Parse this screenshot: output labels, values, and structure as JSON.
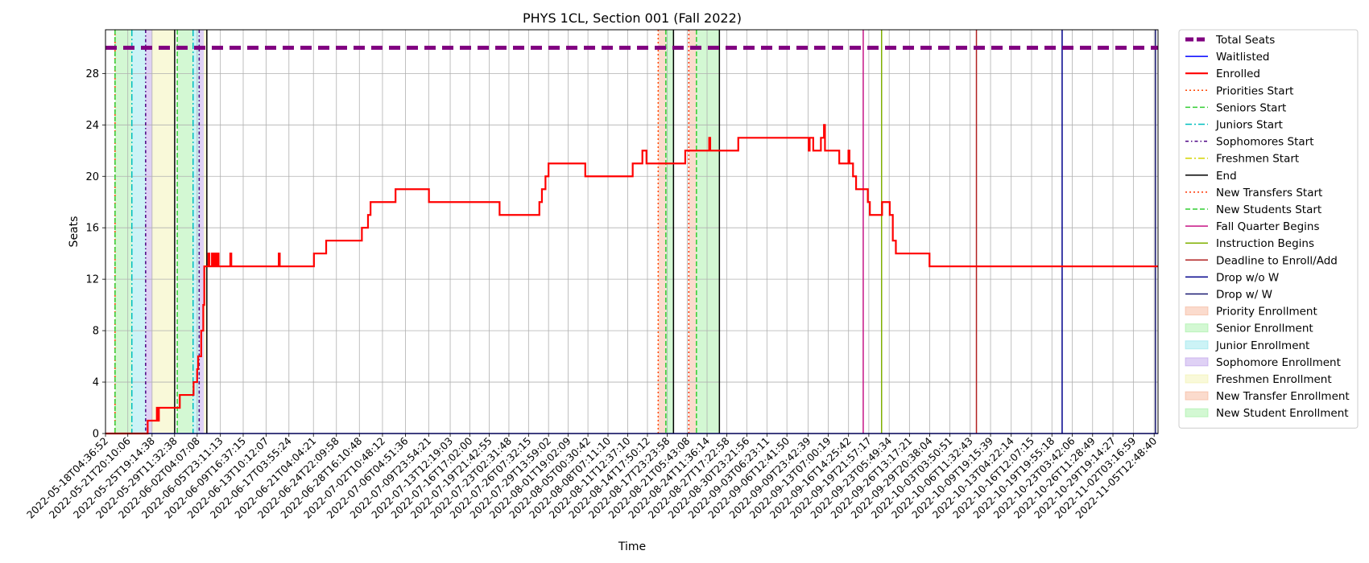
{
  "chart_data": {
    "type": "line",
    "title": "PHYS 1CL, Section 001 (Fall 2022)",
    "xlabel": "Time",
    "ylabel": "Seats",
    "x_start": "2022-05-18T04:36:52",
    "x_end": "2022-11-06T04:00:00",
    "ylim": [
      0,
      31.4
    ],
    "yticks": [
      0,
      4,
      8,
      12,
      16,
      20,
      24,
      28
    ],
    "grid": true,
    "legend_position": "outside-right",
    "xtick_labels": [
      "2022-05-18T04:36:52",
      "2022-05-21T20:10:06",
      "2022-05-25T19:14:38",
      "2022-05-29T11:32:38",
      "2022-06-02T04:07:08",
      "2022-06-05T23:11:13",
      "2022-06-09T16:37:15",
      "2022-06-13T10:12:07",
      "2022-06-17T03:55:24",
      "2022-06-21T04:04:21",
      "2022-06-24T22:09:58",
      "2022-06-28T16:10:48",
      "2022-07-02T10:48:12",
      "2022-07-06T04:51:36",
      "2022-07-09T23:54:21",
      "2022-07-13T12:19:03",
      "2022-07-16T17:02:00",
      "2022-07-19T21:42:55",
      "2022-07-23T02:31:48",
      "2022-07-26T07:32:15",
      "2022-07-29T13:59:02",
      "2022-08-01T19:02:09",
      "2022-08-05T00:30:42",
      "2022-08-08T07:11:10",
      "2022-08-11T12:37:10",
      "2022-08-14T17:50:12",
      "2022-08-17T23:23:58",
      "2022-08-21T05:43:08",
      "2022-08-24T11:36:14",
      "2022-08-27T17:22:58",
      "2022-08-30T23:21:56",
      "2022-09-03T06:23:11",
      "2022-09-06T12:41:50",
      "2022-09-09T23:42:39",
      "2022-09-13T07:00:19",
      "2022-09-16T14:25:42",
      "2022-09-19T21:57:17",
      "2022-09-23T05:49:34",
      "2022-09-26T13:17:21",
      "2022-09-29T20:38:04",
      "2022-10-03T03:50:51",
      "2022-10-06T11:32:43",
      "2022-10-09T19:15:39",
      "2022-10-13T04:22:14",
      "2022-10-16T12:07:15",
      "2022-10-19T19:55:18",
      "2022-10-23T03:42:06",
      "2022-10-26T11:28:49",
      "2022-10-29T19:14:27",
      "2022-11-02T03:16:59",
      "2022-11-05T12:48:40"
    ],
    "series": [
      {
        "name": "Total Seats",
        "color": "#800080",
        "style": "dashed-thick",
        "points": [
          [
            "2022-05-18T04:36:52",
            30
          ],
          [
            "2022-11-06T04:00:00",
            30
          ]
        ]
      },
      {
        "name": "Waitlisted",
        "color": "#0000ff",
        "style": "solid",
        "points": [
          [
            "2022-05-18T04:36:52",
            0
          ],
          [
            "2022-11-06T04:00:00",
            0
          ]
        ]
      },
      {
        "name": "Enrolled",
        "color": "#ff0000",
        "style": "step",
        "points": [
          [
            "2022-05-18T04:36:52",
            0
          ],
          [
            "2022-05-25T00:00:00",
            0
          ],
          [
            "2022-05-25T02:00:00",
            1
          ],
          [
            "2022-05-26T12:00:00",
            1
          ],
          [
            "2022-05-26T14:00:00",
            2
          ],
          [
            "2022-05-26T18:00:00",
            1
          ],
          [
            "2022-05-26T22:00:00",
            2
          ],
          [
            "2022-05-30T06:00:00",
            2
          ],
          [
            "2022-05-30T08:00:00",
            3
          ],
          [
            "2022-06-01T12:00:00",
            3
          ],
          [
            "2022-06-01T14:00:00",
            4
          ],
          [
            "2022-06-02T04:00:00",
            5
          ],
          [
            "2022-06-02T08:00:00",
            6
          ],
          [
            "2022-06-02T20:00:00",
            8
          ],
          [
            "2022-06-03T04:00:00",
            10
          ],
          [
            "2022-06-03T08:00:00",
            13
          ],
          [
            "2022-06-03T22:00:00",
            13
          ],
          [
            "2022-06-04T00:00:00",
            14
          ],
          [
            "2022-06-04T04:00:00",
            13
          ],
          [
            "2022-06-04T12:00:00",
            13
          ],
          [
            "2022-06-04T14:00:00",
            14
          ],
          [
            "2022-06-04T18:00:00",
            13
          ],
          [
            "2022-06-05T00:00:00",
            14
          ],
          [
            "2022-06-05T06:00:00",
            13
          ],
          [
            "2022-06-05T12:00:00",
            14
          ],
          [
            "2022-06-05T16:00:00",
            13
          ],
          [
            "2022-06-07T12:00:00",
            13
          ],
          [
            "2022-06-07T14:00:00",
            14
          ],
          [
            "2022-06-07T18:00:00",
            13
          ],
          [
            "2022-06-15T10:00:00",
            13
          ],
          [
            "2022-06-15T12:00:00",
            14
          ],
          [
            "2022-06-15T16:00:00",
            13
          ],
          [
            "2022-06-21T04:00:00",
            13
          ],
          [
            "2022-06-21T06:00:00",
            14
          ],
          [
            "2022-06-23T04:00:00",
            14
          ],
          [
            "2022-06-23T06:00:00",
            15
          ],
          [
            "2022-06-29T00:00:00",
            15
          ],
          [
            "2022-06-29T02:00:00",
            16
          ],
          [
            "2022-06-30T00:00:00",
            16
          ],
          [
            "2022-06-30T02:00:00",
            17
          ],
          [
            "2022-06-30T10:00:00",
            17
          ],
          [
            "2022-06-30T12:00:00",
            18
          ],
          [
            "2022-07-04T12:00:00",
            18
          ],
          [
            "2022-07-04T14:00:00",
            19
          ],
          [
            "2022-07-09T23:00:00",
            19
          ],
          [
            "2022-07-10T01:00:00",
            18
          ],
          [
            "2022-07-21T12:00:00",
            18
          ],
          [
            "2022-07-21T14:00:00",
            17
          ],
          [
            "2022-07-28T00:00:00",
            17
          ],
          [
            "2022-07-28T02:00:00",
            18
          ],
          [
            "2022-07-28T10:00:00",
            18
          ],
          [
            "2022-07-28T12:00:00",
            19
          ],
          [
            "2022-07-29T00:00:00",
            19
          ],
          [
            "2022-07-29T02:00:00",
            20
          ],
          [
            "2022-07-29T12:00:00",
            20
          ],
          [
            "2022-07-29T14:00:00",
            21
          ],
          [
            "2022-08-04T12:00:00",
            21
          ],
          [
            "2022-08-04T14:00:00",
            20
          ],
          [
            "2022-08-12T06:00:00",
            20
          ],
          [
            "2022-08-12T08:00:00",
            21
          ],
          [
            "2022-08-13T20:00:00",
            21
          ],
          [
            "2022-08-13T22:00:00",
            22
          ],
          [
            "2022-08-14T12:00:00",
            22
          ],
          [
            "2022-08-14T14:00:00",
            21
          ],
          [
            "2022-08-20T20:00:00",
            21
          ],
          [
            "2022-08-20T22:00:00",
            22
          ],
          [
            "2022-08-24T18:00:00",
            22
          ],
          [
            "2022-08-24T20:00:00",
            23
          ],
          [
            "2022-08-25T00:00:00",
            22
          ],
          [
            "2022-08-29T12:00:00",
            22
          ],
          [
            "2022-08-29T14:00:00",
            23
          ],
          [
            "2022-09-10T00:00:00",
            23
          ],
          [
            "2022-09-10T02:00:00",
            22
          ],
          [
            "2022-09-10T06:00:00",
            23
          ],
          [
            "2022-09-10T18:00:00",
            23
          ],
          [
            "2022-09-10T20:00:00",
            22
          ],
          [
            "2022-09-12T00:00:00",
            22
          ],
          [
            "2022-09-12T02:00:00",
            23
          ],
          [
            "2022-09-12T12:00:00",
            23
          ],
          [
            "2022-09-12T14:00:00",
            24
          ],
          [
            "2022-09-12T18:00:00",
            22
          ],
          [
            "2022-09-15T00:00:00",
            22
          ],
          [
            "2022-09-15T02:00:00",
            21
          ],
          [
            "2022-09-16T12:00:00",
            21
          ],
          [
            "2022-09-16T14:00:00",
            22
          ],
          [
            "2022-09-16T18:00:00",
            21
          ],
          [
            "2022-09-17T06:00:00",
            21
          ],
          [
            "2022-09-17T08:00:00",
            20
          ],
          [
            "2022-09-17T18:00:00",
            20
          ],
          [
            "2022-09-17T20:00:00",
            19
          ],
          [
            "2022-09-19T16:00:00",
            19
          ],
          [
            "2022-09-19T18:00:00",
            18
          ],
          [
            "2022-09-20T00:00:00",
            18
          ],
          [
            "2022-09-20T02:00:00",
            17
          ],
          [
            "2022-09-22T00:00:00",
            17
          ],
          [
            "2022-09-22T02:00:00",
            18
          ],
          [
            "2022-09-23T06:00:00",
            18
          ],
          [
            "2022-09-23T08:00:00",
            17
          ],
          [
            "2022-09-23T18:00:00",
            17
          ],
          [
            "2022-09-23T20:00:00",
            15
          ],
          [
            "2022-09-24T06:00:00",
            15
          ],
          [
            "2022-09-24T08:00:00",
            14
          ],
          [
            "2022-09-29T18:00:00",
            14
          ],
          [
            "2022-09-29T20:00:00",
            13
          ],
          [
            "2022-11-06T04:00:00",
            13
          ]
        ]
      }
    ],
    "markers": [
      {
        "name": "Priorities Start",
        "color": "#ff4500",
        "style": "dotted",
        "x": [
          "2022-05-19T18:00:00",
          "2022-08-16T12:00:00"
        ]
      },
      {
        "name": "Seniors Start",
        "color": "#32cd32",
        "style": "dashed",
        "x": [
          "2022-05-19T18:00:00",
          "2022-05-29T22:00:00",
          "2022-08-17T18:00:00"
        ]
      },
      {
        "name": "Juniors Start",
        "color": "#00bfbf",
        "style": "dashdot",
        "x": [
          "2022-05-22T12:00:00",
          "2022-06-01T12:00:00"
        ]
      },
      {
        "name": "Sophomores Start",
        "color": "#4b0082",
        "style": "dashdot-dense",
        "x": [
          "2022-05-24T18:00:00",
          "2022-06-02T12:00:00"
        ]
      },
      {
        "name": "Freshmen Start",
        "color": "#d4d400",
        "style": "dashdot",
        "x": []
      },
      {
        "name": "End",
        "color": "#000000",
        "style": "solid",
        "x": [
          "2022-05-29T12:00:00",
          "2022-06-03T18:00:00",
          "2022-08-19T00:00:00",
          "2022-08-26T12:00:00"
        ]
      },
      {
        "name": "New Transfers Start",
        "color": "#ff3300",
        "style": "dotted",
        "x": [
          "2022-08-21T12:00:00"
        ]
      },
      {
        "name": "New Students Start",
        "color": "#32cd32",
        "style": "dashed",
        "x": [
          "2022-08-22T18:00:00"
        ]
      },
      {
        "name": "Fall Quarter Begins",
        "color": "#c71585",
        "style": "solid",
        "x": [
          "2022-09-19T00:00:00"
        ]
      },
      {
        "name": "Instruction Begins",
        "color": "#7fb000",
        "style": "solid",
        "x": [
          "2022-09-22T00:00:00"
        ]
      },
      {
        "name": "Deadline to Enroll/Add",
        "color": "#b22222",
        "style": "solid",
        "x": [
          "2022-10-07T12:00:00"
        ]
      },
      {
        "name": "Drop w/o W",
        "color": "#00008b",
        "style": "solid",
        "x": [
          "2022-10-21T12:00:00"
        ]
      },
      {
        "name": "Drop w/ W",
        "color": "#191970",
        "style": "solid",
        "x": [
          "2022-11-05T18:00:00"
        ]
      }
    ],
    "spans": [
      {
        "name": "Priority Enrollment",
        "color": "#f4a582",
        "ranges": [
          [
            "2022-08-16T12:00:00",
            "2022-08-17T18:00:00"
          ]
        ]
      },
      {
        "name": "Senior Enrollment",
        "color": "#90ee90",
        "ranges": [
          [
            "2022-05-19T18:00:00",
            "2022-05-22T12:00:00"
          ],
          [
            "2022-05-29T22:00:00",
            "2022-06-01T12:00:00"
          ],
          [
            "2022-08-17T18:00:00",
            "2022-08-19T00:00:00"
          ]
        ]
      },
      {
        "name": "Junior Enrollment",
        "color": "#7fe0e8",
        "ranges": [
          [
            "2022-05-22T12:00:00",
            "2022-05-24T18:00:00"
          ],
          [
            "2022-06-01T12:00:00",
            "2022-06-02T12:00:00"
          ]
        ]
      },
      {
        "name": "Sophomore Enrollment",
        "color": "#b08ce6",
        "ranges": [
          [
            "2022-05-24T18:00:00",
            "2022-05-25T18:00:00"
          ],
          [
            "2022-06-02T12:00:00",
            "2022-06-03T06:00:00"
          ]
        ]
      },
      {
        "name": "Freshmen Enrollment",
        "color": "#f0f0a0",
        "ranges": [
          [
            "2022-05-25T18:00:00",
            "2022-05-29T12:00:00"
          ],
          [
            "2022-06-03T06:00:00",
            "2022-06-03T18:00:00"
          ]
        ]
      },
      {
        "name": "New Transfer Enrollment",
        "color": "#f4a582",
        "ranges": [
          [
            "2022-08-21T12:00:00",
            "2022-08-22T18:00:00"
          ]
        ]
      },
      {
        "name": "New Student Enrollment",
        "color": "#90ee90",
        "ranges": [
          [
            "2022-08-22T18:00:00",
            "2022-08-26T12:00:00"
          ]
        ]
      }
    ]
  }
}
